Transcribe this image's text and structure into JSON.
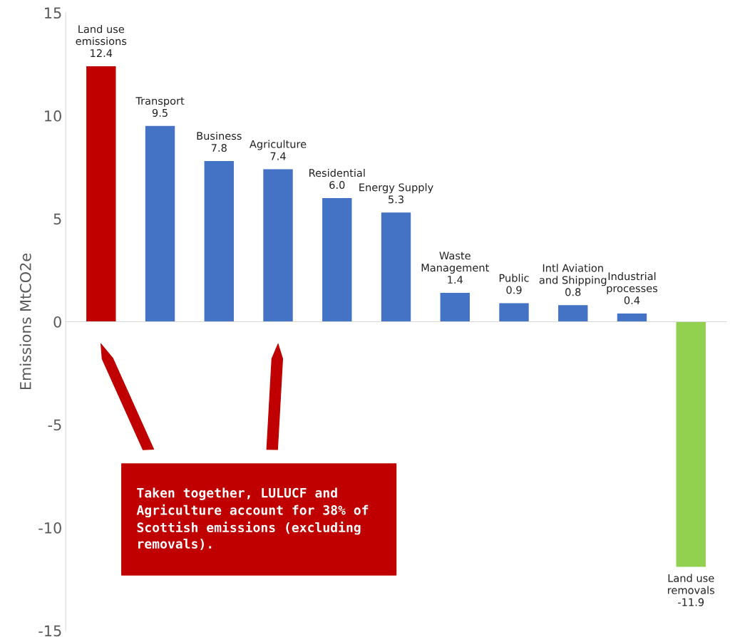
{
  "chart_data": {
    "type": "bar",
    "ylabel": "Emissions MtCO2e",
    "categories": [
      "Land use emissions",
      "Transport",
      "Business",
      "Agriculture",
      "Residential",
      "Energy Supply",
      "Waste Management",
      "Public",
      "Intl Aviation and Shipping",
      "Industrial processes",
      "Land use removals"
    ],
    "values": [
      12.4,
      9.5,
      7.8,
      7.4,
      6.0,
      5.3,
      1.4,
      0.9,
      0.8,
      0.4,
      -11.9
    ],
    "value_labels": [
      "12.4",
      "9.5",
      "7.8",
      "7.4",
      "6.0",
      "5.3",
      "1.4",
      "0.9",
      "0.8",
      "0.4",
      "-11.9"
    ],
    "colors": [
      "#c00000",
      "#4472c4",
      "#4472c4",
      "#4472c4",
      "#4472c4",
      "#4472c4",
      "#4472c4",
      "#4472c4",
      "#4472c4",
      "#4472c4",
      "#92d050"
    ],
    "ylim": [
      -15,
      15
    ],
    "yticks": [
      -15,
      -10,
      -5,
      0,
      5,
      10,
      15
    ],
    "tick_labels": "y",
    "annotations": [
      "Taken together, LULUCF and Agriculture account for 38% of Scottish emissions (excluding removals)."
    ]
  }
}
